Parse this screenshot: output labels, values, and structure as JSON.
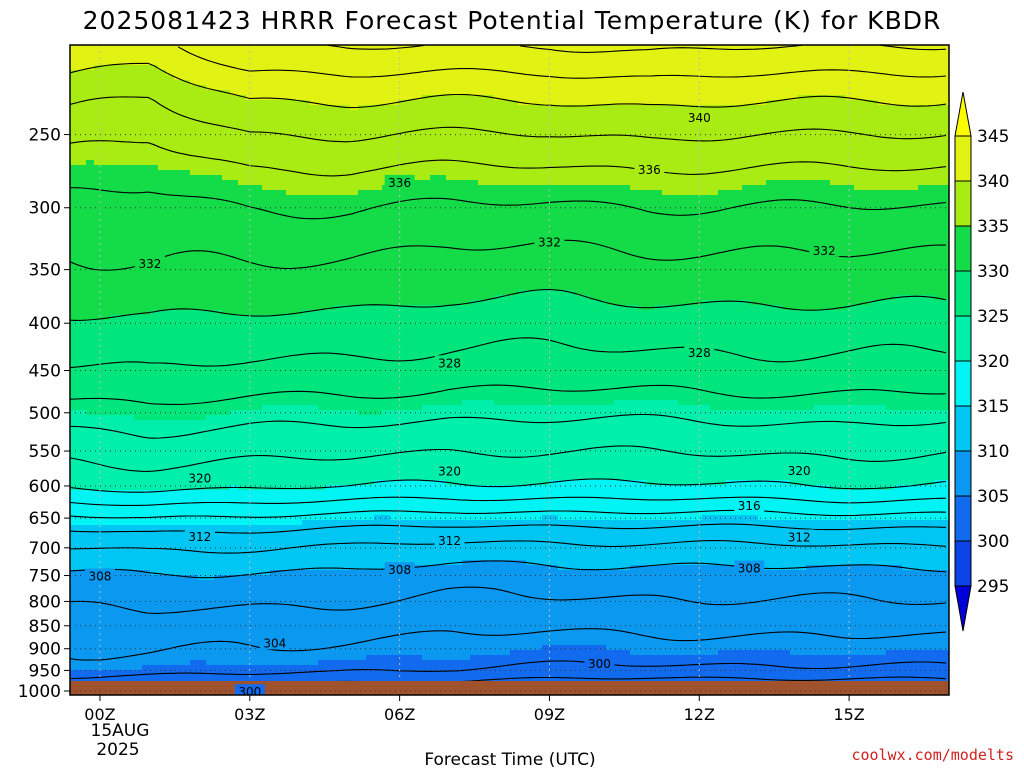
{
  "title": "2025081423 HRRR Forecast Potential Temperature (K) for KBDR",
  "credit": "coolwx.com/modelts",
  "colors": {
    "ground": "#a0522d",
    "contour": "#000000",
    "credit": "#d02020",
    "grid": "#555555"
  },
  "chart_data": {
    "type": "heatmap",
    "xlabel": "Forecast Time (UTC)",
    "ylabel": "",
    "x_ticks": [
      {
        "t": 0,
        "label": "00Z"
      },
      {
        "t": 3,
        "label": "03Z"
      },
      {
        "t": 6,
        "label": "06Z"
      },
      {
        "t": 9,
        "label": "09Z"
      },
      {
        "t": 12,
        "label": "12Z"
      },
      {
        "t": 15,
        "label": "15Z"
      }
    ],
    "date_label": [
      "15AUG",
      "2025"
    ],
    "xlim": [
      -0.6,
      17
    ],
    "y_ticks": [
      250,
      300,
      350,
      400,
      450,
      500,
      550,
      600,
      650,
      700,
      750,
      800,
      850,
      900,
      950,
      1000
    ],
    "ylim": [
      1010,
      200
    ],
    "y_scale": "log",
    "grid": true,
    "colorbar": {
      "levels": [
        295,
        300,
        305,
        310,
        315,
        320,
        325,
        330,
        335,
        340,
        345
      ],
      "tick_labels": [
        "295",
        "300",
        "305",
        "310",
        "315",
        "320",
        "325",
        "330",
        "335",
        "340",
        "345"
      ],
      "colors": [
        "#0000d8",
        "#0b43e6",
        "#126bee",
        "#0a98f0",
        "#00c6f4",
        "#00f4f4",
        "#00f0ac",
        "#00e67c",
        "#14dc48",
        "#a8ec14",
        "#e2f212",
        "#fcfc00"
      ],
      "extend": "both"
    },
    "contour_levels": [
      300,
      302,
      304,
      306,
      308,
      310,
      312,
      314,
      316,
      318,
      320,
      322,
      324,
      326,
      328,
      330,
      332,
      334,
      336,
      338,
      340,
      342,
      344
    ],
    "contour_labels": [
      {
        "t": 10.0,
        "p": 935,
        "text": "300"
      },
      {
        "t": 3.0,
        "p": 1003,
        "text": "300"
      },
      {
        "t": 3.5,
        "p": 888,
        "text": "304"
      },
      {
        "t": 0.0,
        "p": 752,
        "text": "308"
      },
      {
        "t": 6.0,
        "p": 740,
        "text": "308"
      },
      {
        "t": 13.0,
        "p": 737,
        "text": "308"
      },
      {
        "t": 2.0,
        "p": 681,
        "text": "312"
      },
      {
        "t": 7.0,
        "p": 688,
        "text": "312"
      },
      {
        "t": 14.0,
        "p": 682,
        "text": "312"
      },
      {
        "t": 13.0,
        "p": 631,
        "text": "316"
      },
      {
        "t": 2.0,
        "p": 589,
        "text": "320"
      },
      {
        "t": 7.0,
        "p": 579,
        "text": "320"
      },
      {
        "t": 14.0,
        "p": 578,
        "text": "320"
      },
      {
        "t": 7.0,
        "p": 442,
        "text": "328"
      },
      {
        "t": 12.0,
        "p": 431,
        "text": "328"
      },
      {
        "t": 1.0,
        "p": 345,
        "text": "332"
      },
      {
        "t": 9.0,
        "p": 327,
        "text": "332"
      },
      {
        "t": 14.5,
        "p": 334,
        "text": "332"
      },
      {
        "t": 6.0,
        "p": 282,
        "text": "336"
      },
      {
        "t": 11.0,
        "p": 273,
        "text": "336"
      },
      {
        "t": 12.0,
        "p": 240,
        "text": "340"
      }
    ],
    "profile": {
      "pressure": [
        1010,
        1000,
        975,
        950,
        925,
        900,
        875,
        850,
        825,
        800,
        775,
        750,
        725,
        700,
        675,
        650,
        625,
        600,
        575,
        550,
        525,
        500,
        475,
        450,
        425,
        400,
        375,
        350,
        325,
        300,
        275,
        250,
        225,
        200
      ],
      "theta": [
        299.4,
        300.6,
        302.6,
        304.4,
        305.3,
        305.9,
        306.4,
        307.0,
        307.6,
        308.3,
        308.9,
        309.7,
        310.8,
        312.0,
        313.6,
        315.6,
        318.0,
        320.3,
        321.5,
        322.6,
        323.7,
        325.0,
        326.4,
        327.6,
        328.6,
        329.5,
        330.7,
        331.7,
        332.7,
        334.0,
        335.6,
        337.8,
        340.2,
        343.6
      ]
    },
    "time_adjust": [
      {
        "t": -0.6,
        "low": 0.8,
        "mid": 0.0,
        "up": -1.5
      },
      {
        "t": 1,
        "low": 0.5,
        "mid": 0.3,
        "up": -2.5
      },
      {
        "t": 3,
        "low": 0.3,
        "mid": 0.0,
        "up": 0.2
      },
      {
        "t": 5,
        "low": -0.3,
        "mid": -0.2,
        "up": 0.6
      },
      {
        "t": 7,
        "low": -0.7,
        "mid": -0.6,
        "up": 0.5
      },
      {
        "t": 9,
        "low": -1.0,
        "mid": -0.6,
        "up": 0.4
      },
      {
        "t": 11,
        "low": -1.3,
        "mid": -0.5,
        "up": 0.9
      },
      {
        "t": 13,
        "low": -1.3,
        "mid": -0.4,
        "up": 0.6
      },
      {
        "t": 15,
        "low": -1.2,
        "mid": -0.3,
        "up": 0.5
      },
      {
        "t": 17,
        "low": -1.0,
        "mid": -0.4,
        "up": 0.3
      }
    ]
  }
}
